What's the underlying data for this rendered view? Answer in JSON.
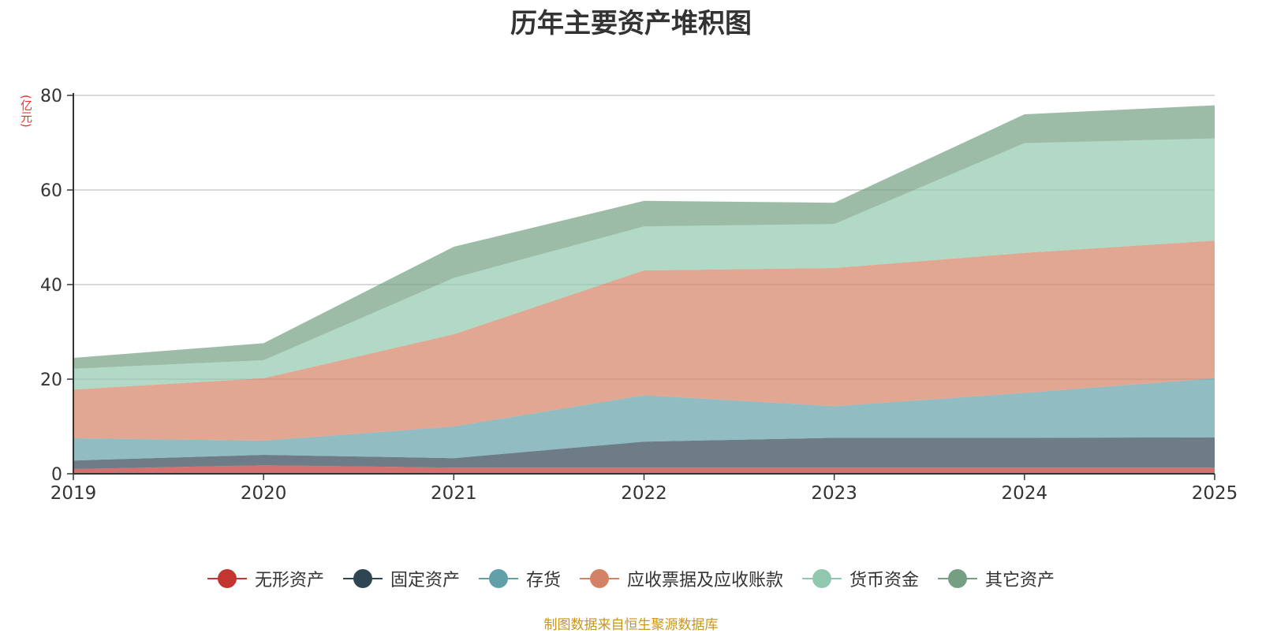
{
  "chart_data": {
    "type": "area",
    "stacked": true,
    "title": "历年主要资产堆积图",
    "ylabel": "(亿元)",
    "xlabel": "",
    "x": [
      "2019",
      "2020",
      "2021",
      "2022",
      "2023",
      "2024",
      "2025"
    ],
    "ylim": [
      0,
      80
    ],
    "yticks": [
      0,
      20,
      40,
      60,
      80
    ],
    "grid": true,
    "legend_position": "bottom",
    "series": [
      {
        "name": "无形资产",
        "color": "#c23531",
        "values": [
          1.0,
          1.8,
          1.3,
          1.3,
          1.3,
          1.3,
          1.3
        ]
      },
      {
        "name": "固定资产",
        "color": "#2f4554",
        "values": [
          1.8,
          2.2,
          2.0,
          5.5,
          6.3,
          6.3,
          6.4
        ]
      },
      {
        "name": "存货",
        "color": "#61a0a8",
        "values": [
          4.7,
          3.0,
          6.7,
          9.8,
          6.7,
          9.5,
          12.5
        ]
      },
      {
        "name": "应收票据及应收账款",
        "color": "#d48265",
        "values": [
          10.3,
          13.2,
          19.5,
          26.4,
          29.2,
          29.6,
          29.1
        ]
      },
      {
        "name": "货币资金",
        "color": "#91c7ae",
        "values": [
          4.4,
          3.8,
          11.9,
          9.3,
          9.3,
          23.2,
          21.6
        ]
      },
      {
        "name": "其它资产",
        "color": "#749f83",
        "values": [
          2.3,
          3.6,
          6.6,
          5.4,
          4.5,
          6.1,
          7.0
        ]
      }
    ]
  },
  "footer": {
    "source": "制图数据来自恒生聚源数据库"
  }
}
